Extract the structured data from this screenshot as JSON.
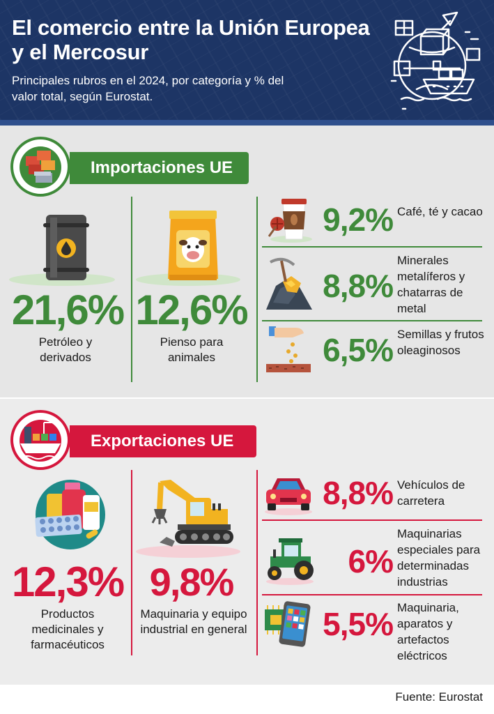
{
  "header": {
    "title": "El comercio entre la Unión Europea y el Mercosur",
    "subtitle": "Principales rubros en el 2024, por categoría y % del valor total, según Eurostat."
  },
  "imports": {
    "heading": "Importaciones UE",
    "color": "#3f8a3a",
    "main": [
      {
        "pct": "21,6%",
        "label": "Petróleo y derivados",
        "icon": "oil-barrel-icon"
      },
      {
        "pct": "12,6%",
        "label": "Pienso para animales",
        "icon": "animal-feed-bag-icon"
      }
    ],
    "side": [
      {
        "pct": "9,2%",
        "label": "Café, té y cacao",
        "icon": "coffee-cup-icon"
      },
      {
        "pct": "8,8%",
        "label": "Minerales metalíferos y chatarras de metal",
        "icon": "mining-ore-icon"
      },
      {
        "pct": "6,5%",
        "label": "Semillas y frutos oleaginosos",
        "icon": "seeds-hand-icon"
      }
    ]
  },
  "exports": {
    "heading": "Exportaciones UE",
    "color": "#d5173d",
    "main": [
      {
        "pct": "12,3%",
        "label": "Productos medicinales y farmacéuticos",
        "icon": "medicine-icon"
      },
      {
        "pct": "9,8%",
        "label": "Maquinaria y equipo industrial en general",
        "icon": "excavator-icon"
      }
    ],
    "side": [
      {
        "pct": "8,8%",
        "label": "Vehículos de carretera",
        "icon": "car-icon"
      },
      {
        "pct": "6%",
        "label": "Maquinarias especiales para determinadas industrias",
        "icon": "tractor-icon"
      },
      {
        "pct": "5,5%",
        "label": "Maquinaria, aparatos y artefactos eléctricos",
        "icon": "smartphone-chip-icon"
      }
    ]
  },
  "footer": "Fuente: Eurostat"
}
